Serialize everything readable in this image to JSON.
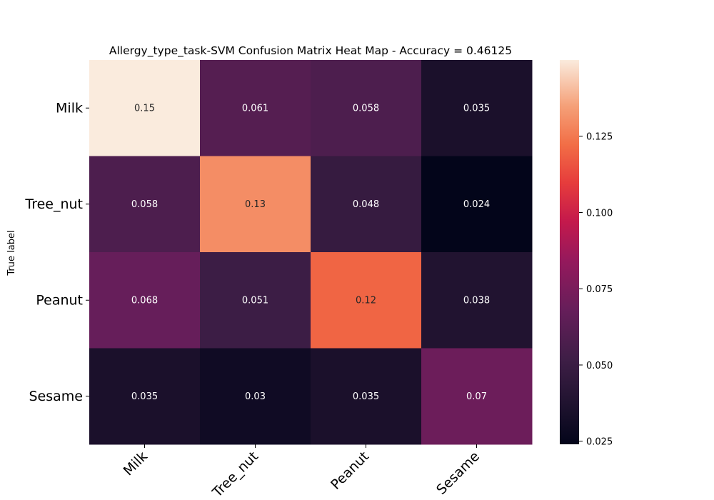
{
  "chart_data": {
    "type": "heatmap",
    "title": "Allergy_type_task-SVM Confusion Matrix Heat Map - Accuracy = 0.46125",
    "xlabel": "",
    "ylabel": "True label",
    "row_labels": [
      "Milk",
      "Tree_nut",
      "Peanut",
      "Sesame"
    ],
    "col_labels": [
      "Milk",
      "Tree_nut",
      "Peanut",
      "Sesame"
    ],
    "values": [
      [
        0.15,
        0.061,
        0.058,
        0.035
      ],
      [
        0.058,
        0.13,
        0.048,
        0.024
      ],
      [
        0.068,
        0.051,
        0.12,
        0.038
      ],
      [
        0.035,
        0.03,
        0.035,
        0.07
      ]
    ],
    "annotations": [
      [
        "0.15",
        "0.061",
        "0.058",
        "0.035"
      ],
      [
        "0.058",
        "0.13",
        "0.048",
        "0.024"
      ],
      [
        "0.068",
        "0.051",
        "0.12",
        "0.038"
      ],
      [
        "0.035",
        "0.03",
        "0.035",
        "0.07"
      ]
    ],
    "colormap": "rocket",
    "color_range": [
      0.024,
      0.15
    ],
    "colorbar_ticks": [
      0.025,
      0.05,
      0.075,
      0.1,
      0.125
    ],
    "colorbar_tick_labels": [
      "0.025",
      "0.050",
      "0.075",
      "0.100",
      "0.125"
    ],
    "text_color_light": "#ffffff",
    "text_color_dark": "#262626"
  }
}
